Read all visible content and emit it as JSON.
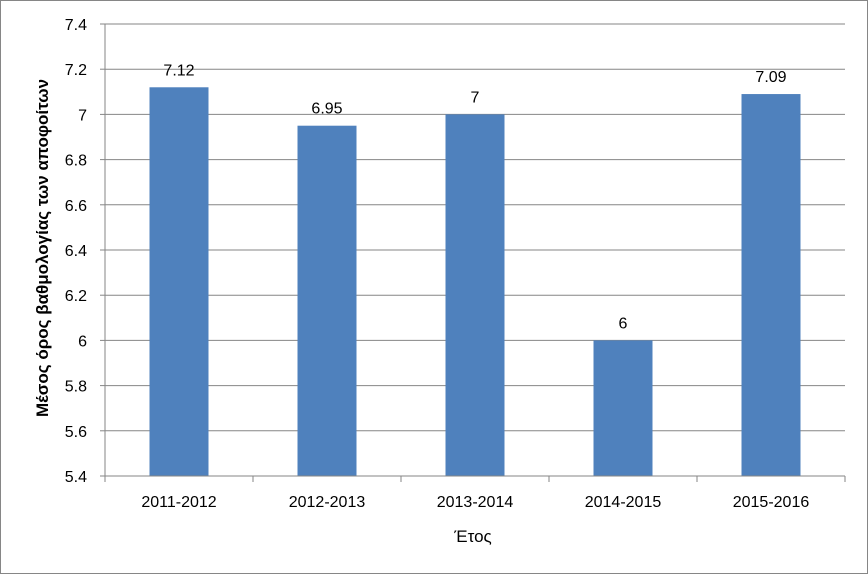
{
  "chart_data": {
    "type": "bar",
    "categories": [
      "2011-2012",
      "2012-2013",
      "2013-2014",
      "2014-2015",
      "2015-2016"
    ],
    "values": [
      7.12,
      6.95,
      7,
      6,
      7.09
    ],
    "data_labels": [
      "7.12",
      "6.95",
      "7",
      "6",
      "7.09"
    ],
    "xlabel": "Έτος",
    "ylabel": "Μέσος όρος βαθμολογίας των αποφοίτων",
    "ylim": [
      5.4,
      7.4
    ],
    "yticks": [
      5.4,
      5.6,
      5.8,
      6,
      6.2,
      6.4,
      6.6,
      6.8,
      7,
      7.2,
      7.4
    ],
    "ytick_labels": [
      "5.4",
      "5.6",
      "5.8",
      "6",
      "6.2",
      "6.4",
      "6.6",
      "6.8",
      "7",
      "7.2",
      "7.4"
    ],
    "grid": true,
    "legend": "none",
    "bar_color": "#4F81BD",
    "grid_color": "#868686"
  }
}
